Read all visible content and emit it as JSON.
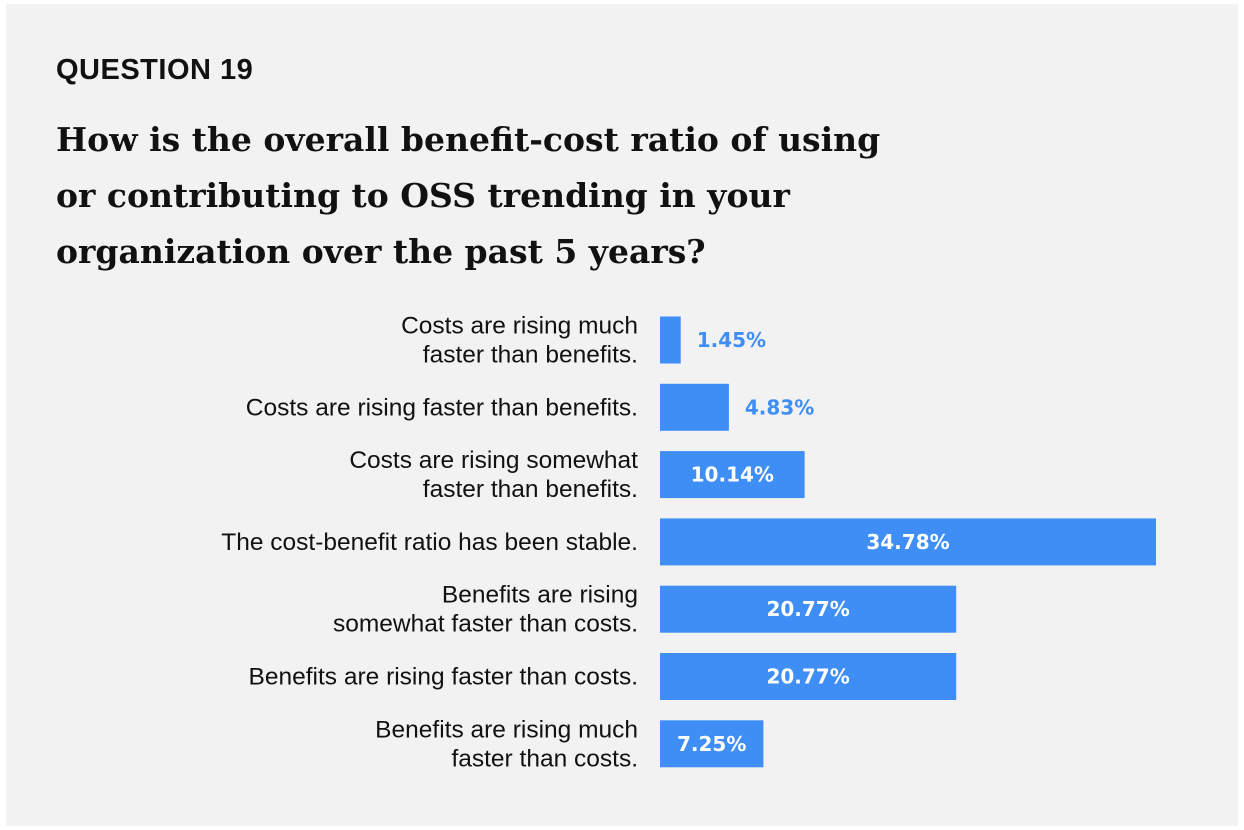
{
  "eyebrow": "QUESTION 19",
  "title_lines": [
    "How is the overall benefit-cost ratio of using",
    "or contributing to OSS trending in your",
    "organization over the past 5 years?"
  ],
  "colors": {
    "bar": "#3f8ef5",
    "label_outside": "#3f8ef5",
    "label_inside": "#ffffff",
    "background": "#f2f2f2"
  },
  "chart_data": {
    "type": "bar",
    "orientation": "horizontal",
    "title": "How is the overall benefit-cost ratio of using or contributing to OSS trending in your organization over the past 5 years?",
    "categories": [
      [
        "Costs are rising much",
        "faster than benefits."
      ],
      [
        "Costs are rising faster than benefits."
      ],
      [
        "Costs are rising somewhat",
        "faster than benefits."
      ],
      [
        "The cost-benefit ratio has been stable."
      ],
      [
        "Benefits are rising",
        "somewhat faster than costs."
      ],
      [
        "Benefits are rising faster than costs."
      ],
      [
        "Benefits are rising much",
        "faster than costs."
      ]
    ],
    "values": [
      1.45,
      4.83,
      10.14,
      34.78,
      20.77,
      20.77,
      7.25
    ],
    "value_labels": [
      "1.45%",
      "4.83%",
      "10.14%",
      "34.78%",
      "20.77%",
      "20.77%",
      "7.25%"
    ],
    "unit": "%",
    "xlim": [
      0,
      34.78
    ],
    "grid": false,
    "legend": "none"
  }
}
